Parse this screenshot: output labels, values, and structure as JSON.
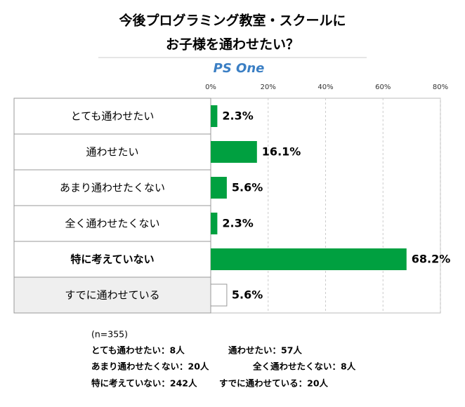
{
  "chart_data": {
    "type": "bar",
    "orientation": "horizontal",
    "title": [
      "今後プログラミング教室・スクールに",
      "お子様を通わせたい？"
    ],
    "logo": "PS One",
    "categories": [
      "とても通わせたい",
      "通わせたい",
      "あまり通わせたくない",
      "全く通わせたくない",
      "特に考えていない",
      "すでに通わせている"
    ],
    "values": [
      2.3,
      16.1,
      5.6,
      2.3,
      68.2,
      5.6
    ],
    "value_labels": [
      "2.3%",
      "16.1%",
      "5.6%",
      "2.3%",
      "68.2%",
      "5.6%"
    ],
    "colors": [
      "#00a040",
      "#00a040",
      "#00a040",
      "#00a040",
      "#00a040",
      "#ffffff"
    ],
    "label_backgrounds": [
      "#ffffff",
      "#ffffff",
      "#ffffff",
      "#ffffff",
      "#ffffff",
      "#efefef"
    ],
    "emphasis": [
      false,
      false,
      false,
      false,
      true,
      false
    ],
    "xlim": [
      0,
      80
    ],
    "xticks": [
      {
        "value": 0,
        "label": "0%"
      },
      {
        "value": 20,
        "label": "20%"
      },
      {
        "value": 40,
        "label": "40%"
      },
      {
        "value": 60,
        "label": "60%"
      },
      {
        "value": 80,
        "label": "80%"
      }
    ],
    "grid": true,
    "notes": [
      [
        "(n=355)"
      ],
      [
        "とても通わせたい：8人",
        "通わせたい：57人"
      ],
      [
        "あまり通わせたくない：20人",
        "全く通わせたくない：8人"
      ],
      [
        "特に考えていない：242人",
        "すでに通わせている：20人"
      ]
    ]
  }
}
